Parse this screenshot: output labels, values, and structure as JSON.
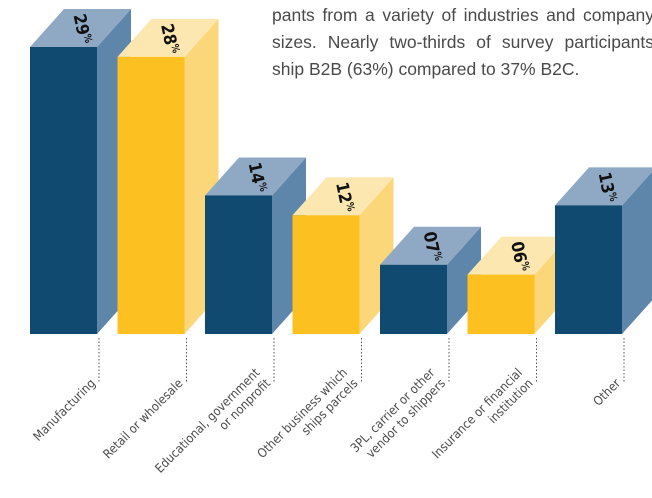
{
  "intro_text": "pants from a variety of industries and company sizes. Nearly two-thirds of survey participants ship B2B (63%) compared to 37% B2C.",
  "colors": {
    "navy": {
      "front": "#104a70",
      "side": "#5e86ab",
      "top": "#8fa9c5"
    },
    "gold": {
      "front": "#fcc020",
      "side": "#fcd77a",
      "top": "#fde7b0"
    },
    "leader": "#555555",
    "label": "#4a4a4a",
    "value": "#111111"
  },
  "chart_data": {
    "type": "bar",
    "style": "3d-column",
    "title": "",
    "xlabel": "",
    "ylabel": "",
    "ylim": [
      0,
      29
    ],
    "grid": false,
    "legend": "none",
    "categories": [
      "Manufacturing",
      "Retail or wholesale",
      "Educational, government or nonprofit",
      "Other business which ships parcels",
      "3PL, carrier or other vendor to shippers",
      "Insurance or financial institution",
      "Other"
    ],
    "category_label_lines": [
      [
        "Manufacturing"
      ],
      [
        "Retail or wholesale"
      ],
      [
        "Educational, government",
        "or nonprofit"
      ],
      [
        "Other business which",
        "ships parcels"
      ],
      [
        "3PL, carrier or other",
        "vendor to shippers"
      ],
      [
        "Insurance or financial",
        "institution"
      ],
      [
        "Other"
      ]
    ],
    "values": [
      29,
      28,
      14,
      12,
      7,
      6,
      13
    ],
    "value_labels": [
      "29",
      "28",
      "14",
      "12",
      "07",
      "06",
      "13"
    ],
    "value_unit": "%",
    "bar_colors": [
      "navy",
      "gold",
      "navy",
      "gold",
      "navy",
      "gold",
      "navy"
    ]
  }
}
